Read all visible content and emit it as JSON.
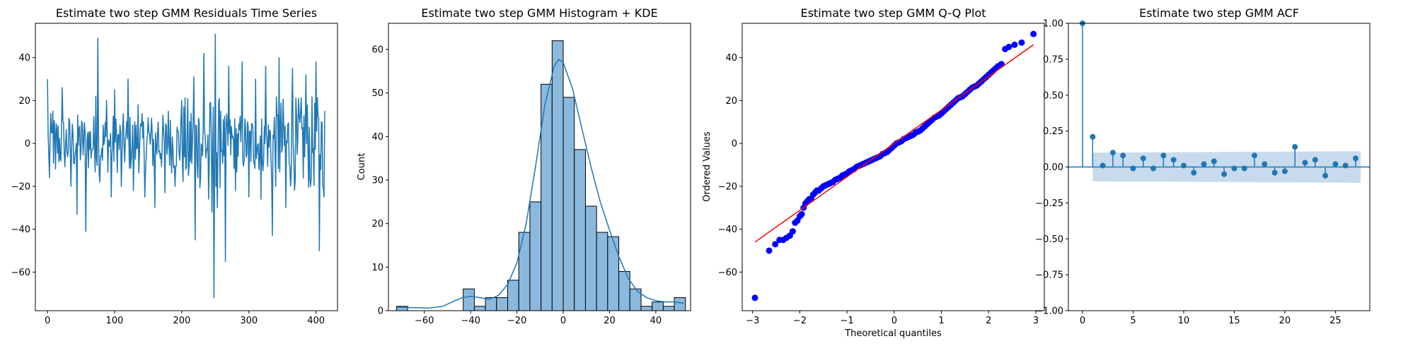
{
  "colors": {
    "series": "#1f77b4",
    "hist_fill": "#8bb9de",
    "qq_points": "#0000ff",
    "qq_line": "#ff0000",
    "band": "#c5d9ec",
    "axes": "#000000"
  },
  "chart_data": [
    {
      "type": "line",
      "title": "Estimate two step GMM Residuals Time Series",
      "xlabel": "",
      "ylabel": "",
      "xlim": [
        -18,
        432
      ],
      "ylim": [
        -78,
        56
      ],
      "x_ticks": [
        0,
        100,
        200,
        300,
        400
      ],
      "y_ticks": [
        -60,
        -40,
        -20,
        0,
        20,
        40
      ],
      "n_points": 414,
      "anchors": [
        [
          0,
          30
        ],
        [
          3,
          -16
        ],
        [
          8,
          15
        ],
        [
          12,
          -12
        ],
        [
          22,
          26
        ],
        [
          25,
          -5
        ],
        [
          35,
          -20
        ],
        [
          38,
          5
        ],
        [
          44,
          -33
        ],
        [
          48,
          8
        ],
        [
          57,
          -41
        ],
        [
          60,
          5
        ],
        [
          72,
          22
        ],
        [
          75,
          49
        ],
        [
          78,
          -18
        ],
        [
          88,
          20
        ],
        [
          95,
          -25
        ],
        [
          100,
          25
        ],
        [
          110,
          -20
        ],
        [
          120,
          30
        ],
        [
          128,
          -22
        ],
        [
          135,
          18
        ],
        [
          145,
          -25
        ],
        [
          150,
          12
        ],
        [
          160,
          -30
        ],
        [
          165,
          10
        ],
        [
          175,
          -23
        ],
        [
          180,
          15
        ],
        [
          190,
          -20
        ],
        [
          200,
          20
        ],
        [
          210,
          -15
        ],
        [
          218,
          31
        ],
        [
          220,
          -45
        ],
        [
          226,
          10
        ],
        [
          233,
          42
        ],
        [
          240,
          -26
        ],
        [
          245,
          -32
        ],
        [
          248,
          -72
        ],
        [
          250,
          51
        ],
        [
          253,
          -30
        ],
        [
          258,
          15
        ],
        [
          265,
          -55
        ],
        [
          270,
          36
        ],
        [
          280,
          -22
        ],
        [
          290,
          38
        ],
        [
          300,
          -25
        ],
        [
          310,
          30
        ],
        [
          318,
          -26
        ],
        [
          325,
          36
        ],
        [
          335,
          -43
        ],
        [
          345,
          40
        ],
        [
          355,
          -30
        ],
        [
          365,
          35
        ],
        [
          372,
          -5
        ],
        [
          385,
          32
        ],
        [
          392,
          -20
        ],
        [
          400,
          38
        ],
        [
          405,
          -50
        ],
        [
          408,
          10
        ],
        [
          412,
          -25
        ],
        [
          414,
          4
        ]
      ]
    },
    {
      "type": "bar",
      "title": "Estimate two step GMM Histogram + KDE",
      "xlabel": "",
      "ylabel": "Count",
      "xlim": [
        -75.5,
        55
      ],
      "ylim": [
        0,
        66
      ],
      "x_ticks": [
        -60,
        -40,
        -20,
        0,
        20,
        40
      ],
      "y_ticks": [
        0,
        10,
        20,
        30,
        40,
        50,
        60
      ],
      "bins": {
        "left": [
          -72,
          -67.2,
          -62.4,
          -57.6,
          -52.8,
          -48,
          -43.2,
          -38.4,
          -33.6,
          -28.8,
          -24,
          -19.2,
          -14.4,
          -9.6,
          -4.8,
          0,
          4.8,
          9.6,
          14.4,
          19.2,
          24,
          28.8,
          33.6,
          38.4,
          43.2,
          48
        ],
        "width": 4.8,
        "counts": [
          1,
          0,
          0,
          0,
          0,
          0,
          5,
          1,
          3,
          3,
          7,
          18,
          25,
          52,
          62,
          49,
          37,
          24,
          18,
          17,
          9,
          5,
          1,
          2,
          1,
          3
        ]
      },
      "kde": {
        "x": [
          -72,
          -65,
          -58,
          -52,
          -48,
          -44,
          -40,
          -36,
          -32,
          -28,
          -24,
          -20,
          -16,
          -12,
          -8,
          -4,
          -2,
          0,
          4,
          8,
          12,
          16,
          20,
          24,
          28,
          32,
          36,
          40,
          44,
          48,
          52
        ],
        "y": [
          0.8,
          0.7,
          0.6,
          1,
          2,
          2.9,
          3.3,
          3,
          2.6,
          3.5,
          6,
          11,
          20,
          33,
          47,
          56,
          57.7,
          57,
          51,
          42,
          33,
          25,
          18.5,
          12.5,
          7.5,
          4.5,
          3,
          2.3,
          2,
          2,
          1.7
        ]
      }
    },
    {
      "type": "scatter",
      "title": "Estimate two step GMM Q-Q Plot",
      "xlabel": "Theoretical quantiles",
      "ylabel": "Ordered Values",
      "xlim": [
        -3.22,
        3.18
      ],
      "ylim": [
        -78,
        56
      ],
      "x_ticks": [
        -3,
        -2,
        -1,
        0,
        1,
        2,
        3
      ],
      "y_ticks": [
        -60,
        -40,
        -20,
        0,
        20,
        40
      ],
      "reference_line": {
        "x": [
          -2.95,
          2.95
        ],
        "y": [
          -46,
          46
        ]
      },
      "points": [
        [
          -2.95,
          -72
        ],
        [
          -2.65,
          -50
        ],
        [
          -2.52,
          -47
        ],
        [
          -2.43,
          -45
        ],
        [
          -2.35,
          -45
        ],
        [
          -2.28,
          -44
        ],
        [
          -2.21,
          -43
        ],
        [
          -2.15,
          -41
        ],
        [
          -2.1,
          -37
        ],
        [
          -2.05,
          -36
        ],
        [
          -2.0,
          -34
        ],
        [
          -1.96,
          -33
        ],
        [
          -1.92,
          -30
        ],
        [
          -1.88,
          -28
        ],
        [
          -1.84,
          -27
        ],
        [
          -1.8,
          -26
        ],
        [
          -1.76,
          -26
        ],
        [
          -1.72,
          -24
        ],
        [
          -1.68,
          -23
        ],
        [
          -1.64,
          -22
        ],
        [
          -1.6,
          -22
        ],
        [
          -1.55,
          -21
        ],
        [
          -1.5,
          -20
        ],
        [
          -1.45,
          -19.5
        ],
        [
          -1.4,
          -19
        ],
        [
          -1.35,
          -18.5
        ],
        [
          -1.3,
          -18
        ],
        [
          -1.25,
          -17
        ],
        [
          -1.2,
          -16.5
        ],
        [
          -1.15,
          -16
        ],
        [
          -1.1,
          -15
        ],
        [
          -1.05,
          -14.5
        ],
        [
          -1.0,
          -14
        ],
        [
          -0.95,
          -13
        ],
        [
          -0.9,
          -12.5
        ],
        [
          -0.85,
          -12
        ],
        [
          -0.8,
          -11
        ],
        [
          -0.75,
          -10.5
        ],
        [
          -0.7,
          -10
        ],
        [
          -0.65,
          -9.5
        ],
        [
          -0.6,
          -9
        ],
        [
          -0.55,
          -8.5
        ],
        [
          -0.5,
          -8
        ],
        [
          -0.45,
          -7.5
        ],
        [
          -0.4,
          -7
        ],
        [
          -0.35,
          -6.5
        ],
        [
          -0.3,
          -6
        ],
        [
          -0.25,
          -5
        ],
        [
          -0.2,
          -4.5
        ],
        [
          -0.15,
          -4
        ],
        [
          -0.1,
          -3
        ],
        [
          -0.05,
          -2
        ],
        [
          0.0,
          -1
        ],
        [
          0.05,
          0
        ],
        [
          0.1,
          0.5
        ],
        [
          0.15,
          1
        ],
        [
          0.2,
          2
        ],
        [
          0.25,
          2.5
        ],
        [
          0.3,
          3
        ],
        [
          0.35,
          3.5
        ],
        [
          0.4,
          4
        ],
        [
          0.45,
          5
        ],
        [
          0.5,
          5.5
        ],
        [
          0.55,
          6
        ],
        [
          0.6,
          7
        ],
        [
          0.65,
          8
        ],
        [
          0.7,
          9
        ],
        [
          0.75,
          10
        ],
        [
          0.8,
          11
        ],
        [
          0.85,
          12
        ],
        [
          0.9,
          12.5
        ],
        [
          0.95,
          13
        ],
        [
          1.0,
          14
        ],
        [
          1.05,
          15
        ],
        [
          1.1,
          16
        ],
        [
          1.15,
          17
        ],
        [
          1.2,
          18
        ],
        [
          1.25,
          19
        ],
        [
          1.3,
          20
        ],
        [
          1.35,
          21
        ],
        [
          1.4,
          21.5
        ],
        [
          1.45,
          22
        ],
        [
          1.5,
          23
        ],
        [
          1.55,
          24
        ],
        [
          1.6,
          25
        ],
        [
          1.65,
          26
        ],
        [
          1.7,
          26.5
        ],
        [
          1.75,
          27
        ],
        [
          1.8,
          28
        ],
        [
          1.85,
          29
        ],
        [
          1.9,
          30
        ],
        [
          1.95,
          31
        ],
        [
          2.0,
          32
        ],
        [
          2.05,
          33
        ],
        [
          2.1,
          34
        ],
        [
          2.15,
          35
        ],
        [
          2.2,
          36
        ],
        [
          2.27,
          37
        ],
        [
          2.35,
          44
        ],
        [
          2.43,
          45
        ],
        [
          2.55,
          46
        ],
        [
          2.7,
          47
        ],
        [
          2.95,
          51
        ]
      ]
    },
    {
      "type": "stem",
      "title": "Estimate two step GMM ACF",
      "xlabel": "",
      "ylabel": "",
      "xlim": [
        -1.4,
        28.4
      ],
      "ylim": [
        -1.0,
        1.0
      ],
      "x_ticks": [
        0,
        5,
        10,
        15,
        20,
        25
      ],
      "y_tick_labels": [
        "1.00",
        "0.75",
        "0.50",
        "0.25",
        "0.00",
        "−0.25",
        "−0.50",
        "−0.75",
        "−1.00"
      ],
      "y_ticks": [
        1.0,
        0.75,
        0.5,
        0.25,
        0.0,
        -0.25,
        -0.5,
        -0.75,
        -1.0
      ],
      "lags": [
        0,
        1,
        2,
        3,
        4,
        5,
        6,
        7,
        8,
        9,
        10,
        11,
        12,
        13,
        14,
        15,
        16,
        17,
        18,
        19,
        20,
        21,
        22,
        23,
        24,
        25,
        26,
        27
      ],
      "values": [
        1.0,
        0.21,
        0.01,
        0.1,
        0.08,
        -0.01,
        0.06,
        -0.01,
        0.08,
        0.05,
        0.01,
        -0.04,
        0.02,
        0.04,
        -0.05,
        -0.01,
        -0.01,
        0.08,
        0.02,
        -0.04,
        -0.03,
        0.14,
        0.03,
        0.05,
        -0.06,
        0.02,
        0.01,
        0.06
      ],
      "confidence_band": {
        "lags": [
          1,
          27.5
        ],
        "upper": [
          0.1,
          0.11
        ],
        "lower": [
          -0.1,
          -0.11
        ]
      }
    }
  ]
}
